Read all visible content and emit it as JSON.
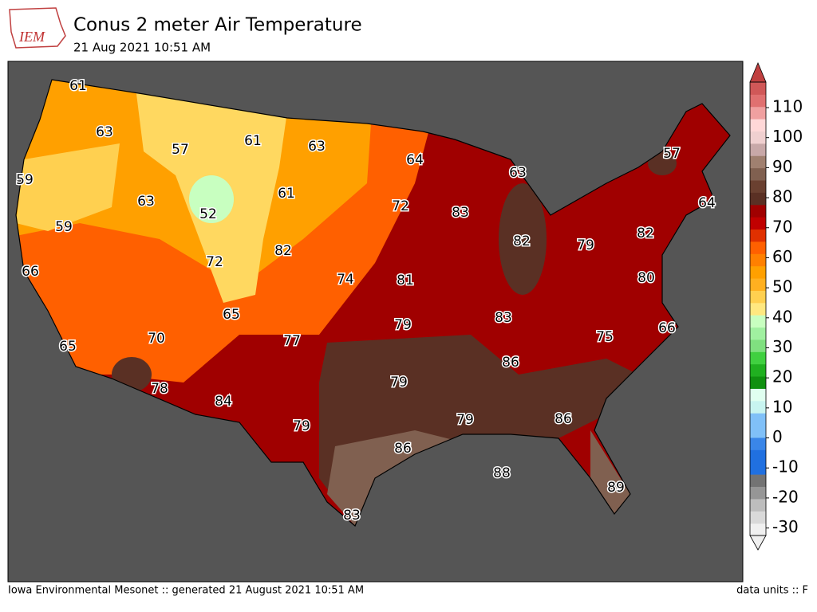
{
  "header": {
    "logo_text": "IEM",
    "title": "Conus 2 meter Air Temperature",
    "subtitle": "21 Aug 2021 10:51 AM"
  },
  "map": {
    "labels": [
      61,
      63,
      57,
      61,
      63,
      59,
      63,
      52,
      61,
      64,
      72,
      83,
      63,
      59,
      66,
      82,
      82,
      79,
      82,
      64,
      57,
      72,
      74,
      81,
      65,
      80,
      83,
      66,
      70,
      77,
      79,
      75,
      65,
      86,
      79,
      78,
      84,
      79,
      79,
      86,
      86,
      88,
      89,
      83
    ]
  },
  "colorbar": {
    "lim": [
      -32.5,
      118.5
    ],
    "ticks": [
      -30,
      -20,
      -10,
      0,
      10,
      20,
      30,
      40,
      50,
      60,
      70,
      80,
      90,
      100,
      110
    ],
    "colors": [
      "#f0f0f0",
      "#d9d9d9",
      "#bdbdbd",
      "#969696",
      "#737373",
      "#2070e0",
      "#2070e0",
      "#3a86e8",
      "#80c0f8",
      "#80c0f8",
      "#c8f4f0",
      "#e0fff0",
      "#109010",
      "#20b020",
      "#40d040",
      "#80e080",
      "#a0f0a0",
      "#c8ffc0",
      "#ffe880",
      "#ffd050",
      "#ffb020",
      "#ffa000",
      "#ff8000",
      "#ff6000",
      "#e03000",
      "#c00000",
      "#a00000",
      "#5a3024",
      "#6a4030",
      "#806050",
      "#a08070",
      "#c8a8a8",
      "#f0d0d0",
      "#ffd8d8",
      "#f0a0a0",
      "#e07070",
      "#d05858"
    ],
    "over_color": "#c04040",
    "under_color": "#f0f0f0"
  },
  "footer": {
    "left": "Iowa Environmental Mesonet :: generated 21 August 2021 10:51 AM",
    "right": "data units :: F"
  }
}
